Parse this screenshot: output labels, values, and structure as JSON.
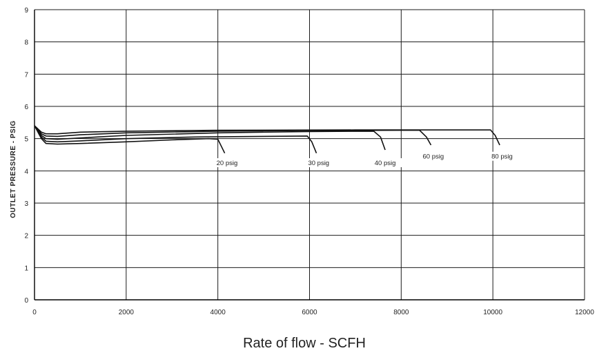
{
  "chart_data": {
    "type": "line",
    "title": "",
    "xlabel": "Rate of flow - SCFH",
    "ylabel": "OUTLET PRESSURE - PSIG",
    "xlim": [
      0,
      12000
    ],
    "ylim": [
      0,
      9
    ],
    "x_ticks": [
      0,
      2000,
      4000,
      6000,
      8000,
      10000,
      12000
    ],
    "y_ticks": [
      0,
      1,
      2,
      3,
      4,
      5,
      6,
      7,
      8,
      9
    ],
    "grid": true,
    "legend": "none",
    "series": [
      {
        "name": "20 psig",
        "points": [
          [
            0,
            5.4
          ],
          [
            150,
            5.0
          ],
          [
            250,
            4.85
          ],
          [
            500,
            4.83
          ],
          [
            1000,
            4.85
          ],
          [
            2000,
            4.9
          ],
          [
            3000,
            4.96
          ],
          [
            3800,
            5.0
          ],
          [
            4000,
            4.98
          ],
          [
            4080,
            4.75
          ],
          [
            4150,
            4.55
          ]
        ]
      },
      {
        "name": "30 psig",
        "points": [
          [
            0,
            5.4
          ],
          [
            150,
            5.05
          ],
          [
            250,
            4.92
          ],
          [
            500,
            4.9
          ],
          [
            1000,
            4.93
          ],
          [
            2000,
            5.0
          ],
          [
            3500,
            5.05
          ],
          [
            5000,
            5.07
          ],
          [
            5950,
            5.08
          ],
          [
            6050,
            4.9
          ],
          [
            6150,
            4.55
          ]
        ]
      },
      {
        "name": "40 psig",
        "points": [
          [
            0,
            5.4
          ],
          [
            150,
            5.1
          ],
          [
            250,
            5.0
          ],
          [
            500,
            4.98
          ],
          [
            1000,
            5.02
          ],
          [
            2000,
            5.1
          ],
          [
            4000,
            5.18
          ],
          [
            6000,
            5.22
          ],
          [
            7400,
            5.23
          ],
          [
            7550,
            5.05
          ],
          [
            7650,
            4.65
          ]
        ]
      },
      {
        "name": "60 psig",
        "points": [
          [
            0,
            5.4
          ],
          [
            150,
            5.15
          ],
          [
            250,
            5.08
          ],
          [
            500,
            5.07
          ],
          [
            1000,
            5.12
          ],
          [
            2000,
            5.18
          ],
          [
            4000,
            5.23
          ],
          [
            6000,
            5.25
          ],
          [
            8400,
            5.26
          ],
          [
            8550,
            5.05
          ],
          [
            8650,
            4.8
          ]
        ]
      },
      {
        "name": "80 psig",
        "points": [
          [
            0,
            5.4
          ],
          [
            150,
            5.2
          ],
          [
            250,
            5.15
          ],
          [
            500,
            5.15
          ],
          [
            1000,
            5.2
          ],
          [
            2000,
            5.23
          ],
          [
            4000,
            5.26
          ],
          [
            7000,
            5.27
          ],
          [
            9950,
            5.27
          ],
          [
            10050,
            5.1
          ],
          [
            10150,
            4.8
          ]
        ]
      }
    ],
    "annotations": [
      {
        "text": "20 psig",
        "x": 4200,
        "y": 4.2
      },
      {
        "text": "30 psig",
        "x": 6200,
        "y": 4.2
      },
      {
        "text": "40 psig",
        "x": 7650,
        "y": 4.2
      },
      {
        "text": "60 psig",
        "x": 8700,
        "y": 4.4
      },
      {
        "text": "80 psig",
        "x": 10200,
        "y": 4.4
      }
    ]
  }
}
